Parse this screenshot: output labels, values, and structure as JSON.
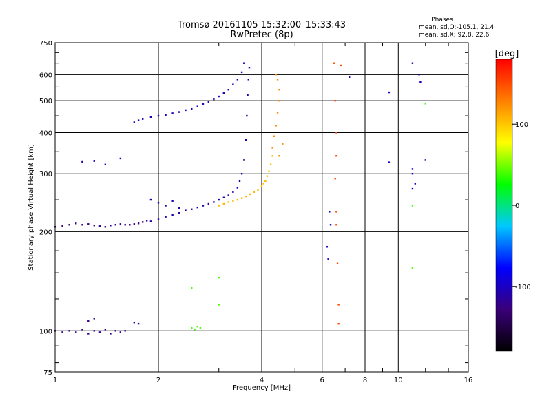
{
  "chart_data": {
    "type": "scatter",
    "title": "Tromsø 20161105 15:32:00–15:33:43",
    "subtitle": "RwPretec (8p)",
    "phases": {
      "heading": "Phases",
      "o_stats": "mean, sd,O:-105.1, 21.4",
      "x_stats": "mean, sd,X:  92.8, 22.6"
    },
    "xlabel": "Frequency [MHz]",
    "ylabel": "Stationary phase Virtual Height [km]",
    "x_scale": "log",
    "y_scale": "log",
    "xlim": [
      1,
      16
    ],
    "ylim": [
      75,
      750
    ],
    "x_ticks": [
      1,
      2,
      4,
      6,
      8,
      10,
      16
    ],
    "x_tick_labels": [
      "1",
      "2",
      "4",
      "6",
      "8",
      "10",
      "16"
    ],
    "y_ticks": [
      75,
      100,
      200,
      300,
      400,
      500,
      600,
      750
    ],
    "y_tick_labels": [
      "75",
      "100",
      "200",
      "300",
      "400",
      "500",
      "600",
      "750"
    ],
    "grid": true,
    "colorbar": {
      "label": "[deg]",
      "range": [
        -180,
        180
      ],
      "ticks": [
        100,
        0,
        -100
      ],
      "tick_labels": [
        "100",
        "0",
        "-100"
      ],
      "colors": [
        "#000000",
        "#3a0078",
        "#0000ff",
        "#00c8ff",
        "#00ff00",
        "#ffff00",
        "#ff8000",
        "#ff0000"
      ]
    },
    "series": [
      {
        "points": [
          [
            1.0,
            100
          ],
          [
            1.05,
            99
          ],
          [
            1.1,
            100
          ],
          [
            1.15,
            99
          ],
          [
            1.2,
            101
          ],
          [
            1.25,
            98
          ],
          [
            1.3,
            100
          ],
          [
            1.35,
            99
          ],
          [
            1.4,
            101
          ],
          [
            1.45,
            98
          ],
          [
            1.5,
            100
          ],
          [
            1.55,
            99
          ],
          [
            1.6,
            100
          ],
          [
            1.25,
            107
          ],
          [
            1.3,
            109
          ],
          [
            1.7,
            106
          ],
          [
            1.75,
            105
          ]
        ],
        "phase": -120
      },
      {
        "points": [
          [
            1.0,
            207
          ],
          [
            1.05,
            208
          ],
          [
            1.1,
            210
          ],
          [
            1.15,
            212
          ],
          [
            1.2,
            210
          ],
          [
            1.25,
            211
          ],
          [
            1.3,
            209
          ],
          [
            1.35,
            208
          ],
          [
            1.4,
            207
          ],
          [
            1.45,
            209
          ],
          [
            1.5,
            210
          ],
          [
            1.55,
            211
          ],
          [
            1.6,
            210
          ],
          [
            1.65,
            210
          ],
          [
            1.7,
            211
          ],
          [
            1.75,
            212
          ],
          [
            1.8,
            214
          ],
          [
            1.85,
            216
          ]
        ],
        "phase": -125
      },
      {
        "points": [
          [
            1.2,
            326
          ],
          [
            1.3,
            328
          ],
          [
            1.4,
            320
          ],
          [
            1.55,
            334
          ],
          [
            1.7,
            430
          ],
          [
            1.75,
            436
          ],
          [
            1.8,
            440
          ],
          [
            1.9,
            446
          ],
          [
            2.0,
            450
          ],
          [
            2.1,
            452
          ],
          [
            2.2,
            458
          ],
          [
            2.3,
            462
          ],
          [
            2.4,
            468
          ],
          [
            2.5,
            472
          ],
          [
            2.6,
            480
          ],
          [
            2.7,
            488
          ],
          [
            2.8,
            496
          ],
          [
            2.9,
            505
          ],
          [
            3.0,
            515
          ],
          [
            3.1,
            528
          ],
          [
            3.2,
            540
          ],
          [
            3.3,
            560
          ],
          [
            3.4,
            580
          ],
          [
            3.5,
            610
          ],
          [
            3.55,
            650
          ]
        ],
        "phase": -105
      },
      {
        "points": [
          [
            1.9,
            215
          ],
          [
            2.0,
            218
          ],
          [
            2.1,
            222
          ],
          [
            2.2,
            225
          ],
          [
            2.3,
            228
          ],
          [
            2.4,
            232
          ],
          [
            2.5,
            234
          ],
          [
            2.6,
            237
          ],
          [
            2.7,
            240
          ],
          [
            2.8,
            243
          ],
          [
            2.9,
            246
          ],
          [
            3.0,
            250
          ],
          [
            3.1,
            254
          ],
          [
            3.2,
            258
          ],
          [
            3.3,
            264
          ],
          [
            3.4,
            272
          ],
          [
            3.45,
            285
          ],
          [
            3.5,
            300
          ],
          [
            3.55,
            330
          ],
          [
            3.6,
            380
          ],
          [
            3.62,
            450
          ],
          [
            3.64,
            520
          ],
          [
            3.66,
            580
          ],
          [
            3.68,
            630
          ],
          [
            1.9,
            250
          ],
          [
            2.0,
            245
          ],
          [
            2.1,
            240
          ],
          [
            2.2,
            248
          ],
          [
            2.3,
            236
          ]
        ],
        "phase": -110
      },
      {
        "points": [
          [
            3.0,
            240
          ],
          [
            3.1,
            243
          ],
          [
            3.2,
            246
          ],
          [
            3.3,
            248
          ],
          [
            3.4,
            250
          ],
          [
            3.5,
            253
          ],
          [
            3.6,
            256
          ],
          [
            3.7,
            260
          ],
          [
            3.8,
            264
          ],
          [
            3.9,
            268
          ],
          [
            4.0,
            275
          ],
          [
            4.05,
            280
          ],
          [
            4.1,
            285
          ],
          [
            4.15,
            295
          ],
          [
            4.2,
            305
          ],
          [
            4.25,
            320
          ],
          [
            4.3,
            340
          ]
        ],
        "phase": 105
      },
      {
        "points": [
          [
            4.3,
            360
          ],
          [
            4.35,
            390
          ],
          [
            4.4,
            420
          ],
          [
            4.45,
            460
          ],
          [
            4.5,
            500
          ],
          [
            4.5,
            540
          ],
          [
            4.45,
            580
          ],
          [
            4.4,
            600
          ],
          [
            4.5,
            340
          ],
          [
            4.6,
            370
          ]
        ],
        "phase": 125
      },
      {
        "points": [
          [
            6.5,
            650
          ],
          [
            6.55,
            500
          ],
          [
            6.6,
            400
          ],
          [
            6.6,
            340
          ],
          [
            6.55,
            290
          ],
          [
            6.6,
            230
          ],
          [
            6.6,
            210
          ],
          [
            6.65,
            160
          ],
          [
            6.7,
            120
          ],
          [
            6.7,
            105
          ],
          [
            6.8,
            640
          ]
        ],
        "phase": 150
      },
      {
        "points": [
          [
            6.3,
            230
          ],
          [
            6.35,
            210
          ],
          [
            6.2,
            180
          ],
          [
            6.25,
            165
          ],
          [
            7.2,
            590
          ],
          [
            9.4,
            530
          ],
          [
            9.4,
            325
          ],
          [
            11.0,
            650
          ],
          [
            11.0,
            310
          ],
          [
            11.0,
            300
          ],
          [
            11.2,
            280
          ],
          [
            11.0,
            270
          ],
          [
            11.5,
            600
          ],
          [
            11.6,
            570
          ],
          [
            12.0,
            330
          ]
        ],
        "phase": -100
      },
      {
        "points": [
          [
            2.5,
            102
          ],
          [
            2.55,
            101
          ],
          [
            2.6,
            103
          ],
          [
            2.65,
            102
          ],
          [
            3.0,
            145
          ],
          [
            3.0,
            120
          ],
          [
            2.5,
            135
          ],
          [
            11.0,
            240
          ],
          [
            11.0,
            155
          ],
          [
            12.0,
            490
          ]
        ],
        "phase": 40
      }
    ]
  }
}
